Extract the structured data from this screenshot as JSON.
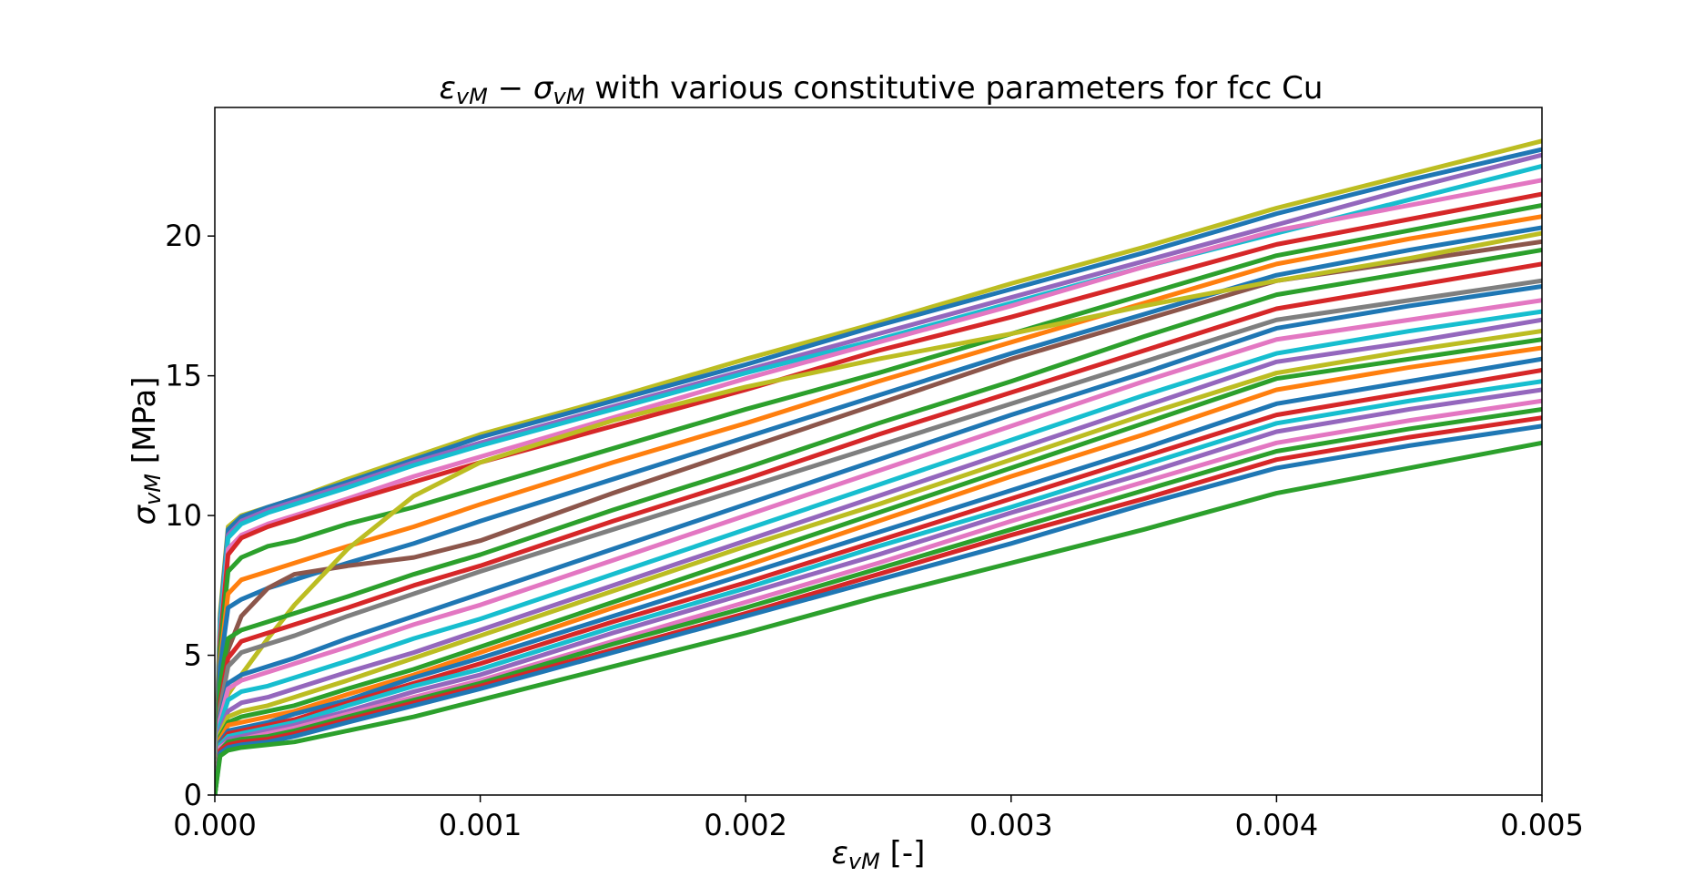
{
  "chart_data": {
    "type": "line",
    "title_parts": {
      "eps": "ε",
      "vm": "vM",
      "minus": " − ",
      "sigma": "σ",
      "rest": " with various constitutive parameters for fcc Cu"
    },
    "xlabel_parts": {
      "sym": "ε",
      "sub": "vM",
      "unit": " [-]"
    },
    "ylabel_parts": {
      "sym": "σ",
      "sub": "vM",
      "unit": " [MPa]"
    },
    "xlim": [
      0,
      0.005
    ],
    "ylim": [
      0,
      24.6
    ],
    "xticks": [
      0,
      0.001,
      0.002,
      0.003,
      0.004,
      0.005
    ],
    "xtick_labels": [
      "0.000",
      "0.001",
      "0.002",
      "0.003",
      "0.004",
      "0.005"
    ],
    "yticks": [
      0,
      5,
      10,
      15,
      20
    ],
    "ytick_labels": [
      "0",
      "5",
      "10",
      "15",
      "20"
    ],
    "grid": false,
    "legend": false,
    "x": [
      0,
      2e-05,
      5e-05,
      0.0001,
      0.0002,
      0.0003,
      0.0005,
      0.00075,
      0.001,
      0.0015,
      0.002,
      0.0025,
      0.003,
      0.0035,
      0.004,
      0.0045,
      0.005
    ],
    "series": [
      {
        "color": "#bcbd22",
        "values": [
          0,
          6.5,
          9.6,
          10.0,
          10.3,
          10.6,
          11.3,
          12.1,
          12.9,
          14.2,
          15.6,
          16.9,
          18.3,
          19.6,
          21.0,
          22.2,
          23.4
        ]
      },
      {
        "color": "#1f77b4",
        "values": [
          0,
          6.3,
          9.5,
          9.95,
          10.3,
          10.6,
          11.2,
          12.0,
          12.8,
          14.1,
          15.4,
          16.8,
          18.1,
          19.4,
          20.8,
          22.0,
          23.1
        ]
      },
      {
        "color": "#9467bd",
        "values": [
          0,
          6.1,
          9.3,
          9.8,
          10.2,
          10.5,
          11.1,
          11.9,
          12.6,
          13.9,
          15.2,
          16.5,
          17.8,
          19.1,
          20.4,
          21.7,
          22.9
        ]
      },
      {
        "color": "#17becf",
        "values": [
          0,
          6.0,
          9.2,
          9.7,
          10.1,
          10.4,
          11.0,
          11.8,
          12.5,
          13.8,
          15.1,
          16.3,
          17.6,
          18.9,
          20.1,
          21.3,
          22.5
        ]
      },
      {
        "color": "#e377c2",
        "values": [
          0,
          5.6,
          8.8,
          9.3,
          9.7,
          10.0,
          10.6,
          11.4,
          12.1,
          13.5,
          14.9,
          16.2,
          17.5,
          18.9,
          20.2,
          21.1,
          22.0
        ]
      },
      {
        "color": "#d62728",
        "values": [
          0,
          5.5,
          8.6,
          9.2,
          9.6,
          9.9,
          10.5,
          11.2,
          11.9,
          13.2,
          14.5,
          15.9,
          17.1,
          18.4,
          19.7,
          20.6,
          21.5
        ]
      },
      {
        "color": "#2ca02c",
        "values": [
          0,
          5.2,
          8.0,
          8.5,
          8.9,
          9.1,
          9.7,
          10.3,
          11.0,
          12.4,
          13.8,
          15.1,
          16.5,
          17.9,
          19.3,
          20.2,
          21.1
        ]
      },
      {
        "color": "#ff7f0e",
        "values": [
          0,
          4.8,
          7.2,
          7.7,
          8.0,
          8.3,
          8.9,
          9.6,
          10.4,
          11.9,
          13.3,
          14.8,
          16.2,
          17.6,
          19.0,
          19.9,
          20.7
        ]
      },
      {
        "color": "#1f77b4",
        "values": [
          0,
          4.6,
          6.7,
          7.0,
          7.4,
          7.7,
          8.3,
          9.0,
          9.8,
          11.3,
          12.8,
          14.3,
          15.8,
          17.2,
          18.6,
          19.5,
          20.3
        ]
      },
      {
        "color": "#8c564b",
        "values": [
          0,
          3.2,
          5.2,
          6.4,
          7.4,
          7.9,
          8.2,
          8.5,
          9.1,
          10.8,
          12.4,
          14.0,
          15.6,
          17.0,
          18.4,
          19.1,
          19.8
        ]
      },
      {
        "color": "#bcbd22",
        "values": [
          0,
          2.5,
          3.6,
          4.3,
          5.6,
          6.8,
          8.8,
          10.7,
          11.9,
          13.4,
          14.6,
          15.6,
          16.5,
          17.5,
          18.4,
          19.2,
          20.1
        ]
      },
      {
        "color": "#2ca02c",
        "values": [
          0,
          4.0,
          5.6,
          5.9,
          6.2,
          6.5,
          7.1,
          7.9,
          8.6,
          10.2,
          11.7,
          13.3,
          14.8,
          16.4,
          17.9,
          18.7,
          19.5
        ]
      },
      {
        "color": "#d62728",
        "values": [
          0,
          3.3,
          4.9,
          5.5,
          5.8,
          6.1,
          6.7,
          7.5,
          8.2,
          9.8,
          11.3,
          12.9,
          14.4,
          15.9,
          17.4,
          18.2,
          19.0
        ]
      },
      {
        "color": "#7f7f7f",
        "values": [
          0,
          3.1,
          4.6,
          5.1,
          5.4,
          5.7,
          6.4,
          7.2,
          8.0,
          9.5,
          11.0,
          12.5,
          14.0,
          15.5,
          17.0,
          17.7,
          18.4
        ]
      },
      {
        "color": "#1f77b4",
        "values": [
          0,
          2.8,
          4.0,
          4.3,
          4.6,
          4.9,
          5.6,
          6.4,
          7.2,
          8.8,
          10.4,
          12.0,
          13.6,
          15.1,
          16.7,
          17.5,
          18.2
        ]
      },
      {
        "color": "#e377c2",
        "values": [
          0,
          2.7,
          3.8,
          4.1,
          4.4,
          4.7,
          5.3,
          6.1,
          6.8,
          8.4,
          10.0,
          11.6,
          13.2,
          14.8,
          16.3,
          17.0,
          17.7
        ]
      },
      {
        "color": "#17becf",
        "values": [
          0,
          2.5,
          3.4,
          3.7,
          3.9,
          4.2,
          4.8,
          5.6,
          6.3,
          7.9,
          9.5,
          11.1,
          12.7,
          14.3,
          15.8,
          16.6,
          17.3
        ]
      },
      {
        "color": "#9467bd",
        "values": [
          0,
          2.3,
          3.0,
          3.3,
          3.5,
          3.8,
          4.4,
          5.1,
          5.9,
          7.5,
          9.1,
          10.7,
          12.3,
          13.9,
          15.5,
          16.2,
          17.0
        ]
      },
      {
        "color": "#bcbd22",
        "values": [
          0,
          2.2,
          2.8,
          3.0,
          3.2,
          3.5,
          4.1,
          4.9,
          5.7,
          7.3,
          8.9,
          10.4,
          12.0,
          13.6,
          15.1,
          15.9,
          16.6
        ]
      },
      {
        "color": "#2ca02c",
        "values": [
          0,
          2.1,
          2.6,
          2.8,
          3.0,
          3.2,
          3.8,
          4.5,
          5.3,
          6.9,
          8.5,
          10.1,
          11.7,
          13.3,
          14.9,
          15.6,
          16.3
        ]
      },
      {
        "color": "#ff7f0e",
        "values": [
          0,
          2.0,
          2.5,
          2.6,
          2.8,
          3.0,
          3.6,
          4.3,
          5.1,
          6.7,
          8.2,
          9.8,
          11.4,
          12.9,
          14.5,
          15.3,
          16.0
        ]
      },
      {
        "color": "#1f77b4",
        "values": [
          0,
          1.9,
          2.3,
          2.4,
          2.6,
          2.9,
          3.4,
          4.2,
          4.9,
          6.4,
          7.9,
          9.4,
          10.9,
          12.4,
          14.0,
          14.8,
          15.6
        ]
      },
      {
        "color": "#d62728",
        "values": [
          0,
          1.8,
          2.2,
          2.3,
          2.5,
          2.7,
          3.3,
          4.0,
          4.7,
          6.2,
          7.6,
          9.1,
          10.6,
          12.1,
          13.6,
          14.4,
          15.2
        ]
      },
      {
        "color": "#17becf",
        "values": [
          0,
          1.8,
          2.1,
          2.2,
          2.4,
          2.6,
          3.2,
          3.9,
          4.5,
          6.0,
          7.4,
          8.9,
          10.3,
          11.8,
          13.3,
          14.1,
          14.8
        ]
      },
      {
        "color": "#9467bd",
        "values": [
          0,
          1.7,
          2.0,
          2.1,
          2.3,
          2.5,
          3.0,
          3.7,
          4.3,
          5.8,
          7.2,
          8.6,
          10.1,
          11.5,
          13.0,
          13.8,
          14.5
        ]
      },
      {
        "color": "#e377c2",
        "values": [
          0,
          1.7,
          1.9,
          2.0,
          2.2,
          2.4,
          2.9,
          3.5,
          4.1,
          5.5,
          6.9,
          8.3,
          9.8,
          11.2,
          12.6,
          13.4,
          14.1
        ]
      },
      {
        "color": "#2ca02c",
        "values": [
          0,
          1.6,
          1.9,
          2.0,
          2.1,
          2.3,
          2.8,
          3.4,
          4.0,
          5.4,
          6.7,
          8.1,
          9.5,
          10.9,
          12.3,
          13.1,
          13.8
        ]
      },
      {
        "color": "#d62728",
        "values": [
          0,
          1.6,
          1.8,
          1.9,
          2.0,
          2.2,
          2.7,
          3.3,
          3.9,
          5.2,
          6.5,
          7.9,
          9.3,
          10.6,
          12.0,
          12.8,
          13.5
        ]
      },
      {
        "color": "#1f77b4",
        "values": [
          0,
          1.5,
          1.7,
          1.8,
          1.9,
          2.1,
          2.6,
          3.2,
          3.8,
          5.1,
          6.4,
          7.7,
          9.0,
          10.4,
          11.7,
          12.5,
          13.2
        ]
      },
      {
        "color": "#2ca02c",
        "values": [
          0,
          1.4,
          1.6,
          1.7,
          1.8,
          1.9,
          2.3,
          2.8,
          3.4,
          4.6,
          5.8,
          7.1,
          8.3,
          9.5,
          10.8,
          11.7,
          12.6
        ]
      }
    ]
  }
}
